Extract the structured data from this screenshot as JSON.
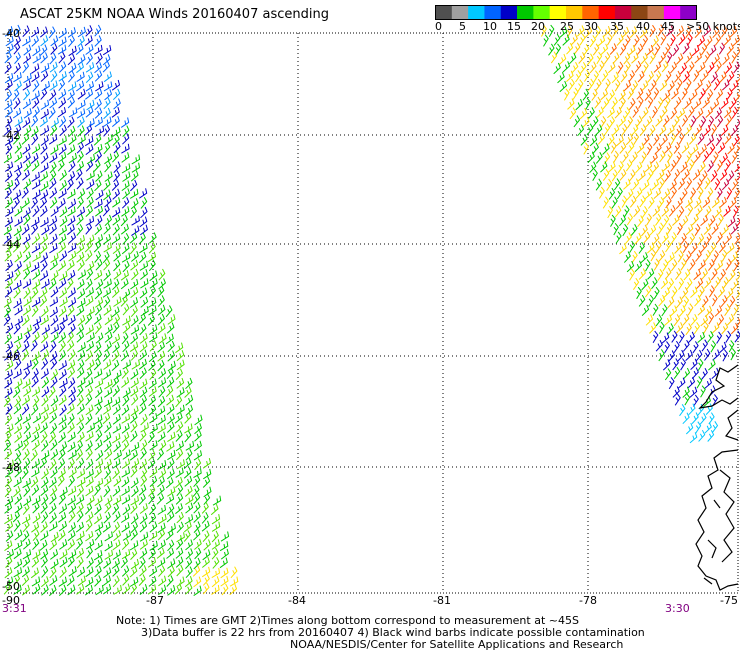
{
  "title": "ASCAT 25KM NOAA Winds 20160407 ascending",
  "legend": {
    "labels": [
      "0",
      "5",
      "10",
      "15",
      "20",
      "25",
      "30",
      "35",
      "40",
      "45",
      ">50 knots"
    ],
    "colors": [
      "#505050",
      "#a0a0a0",
      "#00c8ff",
      "#0064ff",
      "#0000c8",
      "#00c800",
      "#64ff00",
      "#ffff00",
      "#ffc800",
      "#ff6400",
      "#ff0000",
      "#c8003c",
      "#8c4614",
      "#c87850",
      "#ff00ff",
      "#8c00c8"
    ]
  },
  "axes": {
    "lat_labels": [
      "-40",
      "-42",
      "-44",
      "-46",
      "-48",
      "-50"
    ],
    "lon_labels": [
      "-90",
      "-87",
      "-84",
      "-81",
      "-78",
      "-75"
    ],
    "lat_range": [
      -50,
      -40
    ],
    "lon_range": [
      -90,
      -75
    ],
    "grid": true
  },
  "times": {
    "left": "3:31",
    "right": "3:30"
  },
  "notes": {
    "line1": "Note: 1) Times are GMT 2)Times along bottom correspond to measurement at ~45S",
    "line2": "3)Data buffer is 22 hrs from 20160407 4) Black wind barbs indicate possible contamination",
    "line3": "NOAA/NESDIS/Center for Satellite Applications and Research"
  }
}
